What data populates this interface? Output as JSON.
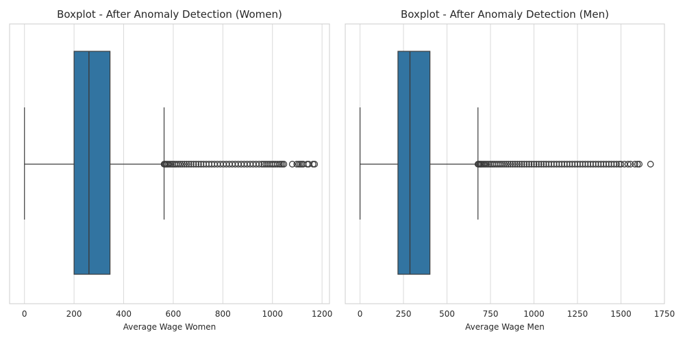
{
  "chart_data": [
    {
      "type": "boxplot",
      "title": "Boxplot - After Anomaly Detection (Women)",
      "xlabel": "Average Wage Women",
      "ylabel": "",
      "xlim": [
        -60,
        1230
      ],
      "xticks": [
        0,
        200,
        400,
        600,
        800,
        1000,
        1200
      ],
      "grid": "x",
      "orientation": "horizontal",
      "box": {
        "whisker_low": 0,
        "q1": 200,
        "median": 260,
        "q3": 345,
        "whisker_high": 563,
        "color": "#3274a1"
      },
      "outliers": [
        563,
        566,
        570,
        575,
        580,
        586,
        592,
        598,
        605,
        612,
        620,
        628,
        636,
        645,
        654,
        663,
        672,
        682,
        692,
        702,
        712,
        722,
        733,
        744,
        755,
        766,
        778,
        790,
        802,
        814,
        826,
        838,
        850,
        862,
        874,
        886,
        898,
        910,
        922,
        934,
        946,
        958,
        966,
        974,
        982,
        990,
        998,
        1005,
        1012,
        1020,
        1028,
        1034,
        1040,
        1046,
        1080,
        1098,
        1106,
        1112,
        1118,
        1124,
        1140,
        1146,
        1164,
        1170
      ]
    },
    {
      "type": "boxplot",
      "title": "Boxplot - After Anomaly Detection (Men)",
      "xlabel": "Average Wage Men",
      "ylabel": "",
      "xlim": [
        -85,
        1750
      ],
      "xticks": [
        0,
        250,
        500,
        750,
        1000,
        1250,
        1500,
        1750
      ],
      "grid": "x",
      "orientation": "horizontal",
      "box": {
        "whisker_low": 0,
        "q1": 218,
        "median": 287,
        "q3": 402,
        "whisker_high": 678,
        "color": "#3274a1"
      },
      "outliers": [
        678,
        682,
        688,
        694,
        700,
        708,
        716,
        724,
        733,
        742,
        752,
        762,
        772,
        783,
        794,
        805,
        816,
        828,
        840,
        852,
        865,
        878,
        891,
        904,
        917,
        930,
        944,
        958,
        972,
        986,
        1000,
        1014,
        1028,
        1042,
        1056,
        1070,
        1085,
        1100,
        1115,
        1130,
        1145,
        1160,
        1175,
        1190,
        1205,
        1220,
        1235,
        1250,
        1265,
        1280,
        1295,
        1310,
        1325,
        1340,
        1355,
        1370,
        1385,
        1400,
        1415,
        1430,
        1445,
        1460,
        1475,
        1490,
        1500,
        1520,
        1540,
        1555,
        1580,
        1595,
        1605,
        1670
      ]
    }
  ]
}
